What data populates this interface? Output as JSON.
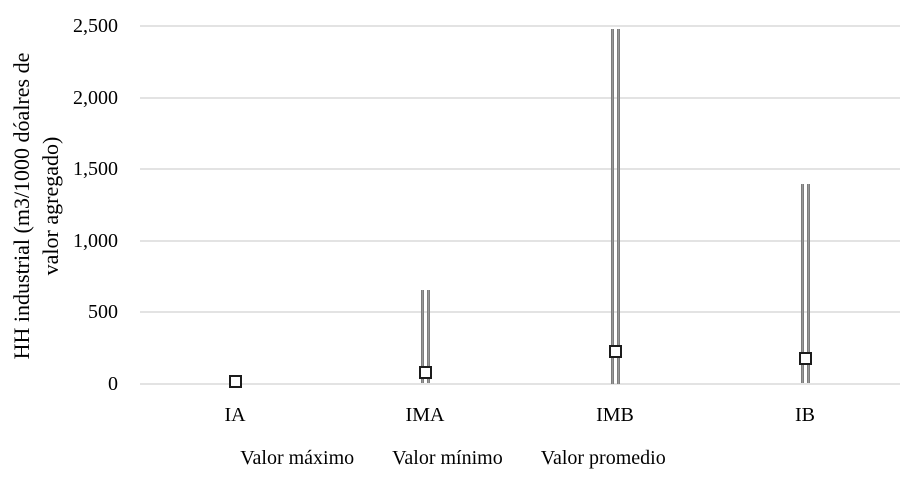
{
  "chart_data": {
    "type": "range-hilo",
    "title": "",
    "categories": [
      "IA",
      "IMA",
      "IMB",
      "IB"
    ],
    "series": [
      {
        "name": "Valor máximo",
        "values": [
          40,
          655,
          2480,
          1400
        ]
      },
      {
        "name": "Valor mínimo",
        "values": [
          2,
          5,
          2,
          10
        ]
      },
      {
        "name": "Valor promedio",
        "values": [
          15,
          80,
          225,
          180
        ]
      }
    ],
    "ylabel": "HH industrial (m3/1000 dóalres de valor agregado)",
    "ylabel_lines": [
      "HH industrial (m3/1000 dóalres de",
      "valor agregado)"
    ],
    "xlabel": "",
    "ylim": [
      0,
      2500
    ],
    "yticks": [
      {
        "value": 0,
        "label": "0"
      },
      {
        "value": 500,
        "label": "500"
      },
      {
        "value": 1000,
        "label": "1,000"
      },
      {
        "value": 1500,
        "label": "1,500"
      },
      {
        "value": 2000,
        "label": "2,000"
      },
      {
        "value": 2500,
        "label": "2,500"
      }
    ],
    "grid": true,
    "legend_position": "bottom",
    "legend": [
      "Valor máximo",
      "Valor mínimo",
      "Valor promedio"
    ],
    "colors": {
      "range_line_edge": "#686868",
      "range_line_core": "#a3a3a3",
      "gridline": "#e3e3e3",
      "marker_border": "#1c1c1c",
      "marker_fill": "#ffffff",
      "text": "#000000"
    }
  }
}
